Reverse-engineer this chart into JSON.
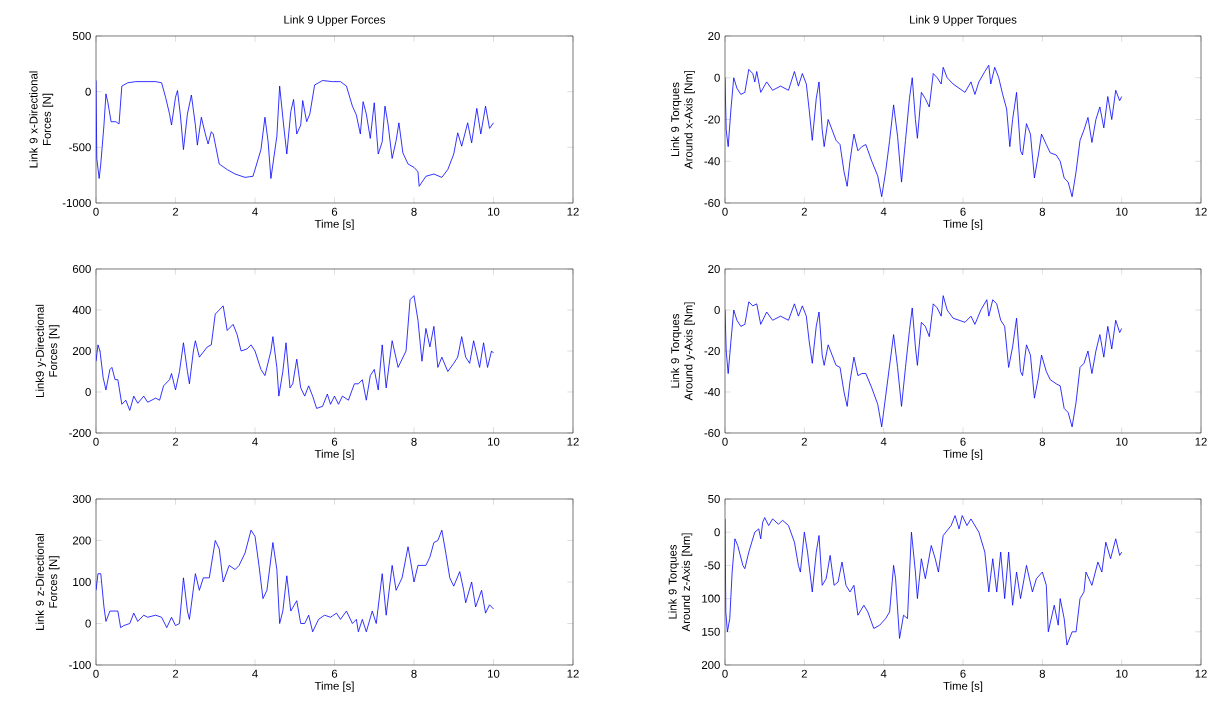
{
  "chart_data": [
    {
      "type": "line",
      "title": "Link 9 Upper Forces",
      "xlabel": "Time [s]",
      "ylabel": "Link 9 x-Directional Forces [N]",
      "color": "#0000ff",
      "xlim": [
        0,
        12
      ],
      "xticks": [
        0,
        2,
        4,
        6,
        8,
        10,
        12
      ],
      "ylim": [
        -1000,
        500
      ],
      "yticks": [
        -1000,
        -500,
        0,
        500
      ],
      "x": [
        0,
        0.02,
        0.08,
        0.12,
        0.2,
        0.25,
        0.3,
        0.38,
        0.5,
        0.58,
        0.65,
        0.8,
        1.0,
        1.5,
        1.65,
        1.75,
        1.85,
        1.9,
        2.0,
        2.05,
        2.12,
        2.2,
        2.3,
        2.4,
        2.5,
        2.55,
        2.65,
        2.75,
        2.82,
        2.9,
        2.95,
        3.1,
        3.3,
        3.5,
        3.75,
        3.95,
        4.05,
        4.15,
        4.25,
        4.33,
        4.4,
        4.55,
        4.62,
        4.72,
        4.8,
        4.9,
        4.97,
        5.05,
        5.15,
        5.2,
        5.3,
        5.38,
        5.5,
        5.7,
        5.95,
        6.15,
        6.3,
        6.45,
        6.55,
        6.65,
        6.72,
        6.8,
        6.9,
        7.0,
        7.1,
        7.2,
        7.27,
        7.35,
        7.45,
        7.55,
        7.62,
        7.72,
        7.85,
        8.0,
        8.1,
        8.13,
        8.3,
        8.5,
        8.7,
        8.85,
        9.0,
        9.1,
        9.2,
        9.35,
        9.45,
        9.58,
        9.68,
        9.8,
        9.9,
        10.0
      ],
      "values": [
        100,
        -600,
        -780,
        -650,
        -300,
        -20,
        -100,
        -270,
        -270,
        -290,
        50,
        80,
        90,
        90,
        80,
        -50,
        -200,
        -300,
        -50,
        10,
        -200,
        -520,
        -200,
        -30,
        -300,
        -480,
        -230,
        -380,
        -470,
        -360,
        -380,
        -650,
        -700,
        -740,
        -770,
        -760,
        -640,
        -520,
        -230,
        -450,
        -780,
        -400,
        50,
        -300,
        -560,
        -180,
        -70,
        -380,
        -300,
        -80,
        -270,
        -200,
        60,
        100,
        90,
        90,
        50,
        -130,
        -210,
        -380,
        -90,
        -200,
        -420,
        -100,
        -560,
        -450,
        -130,
        -300,
        -600,
        -440,
        -280,
        -550,
        -650,
        -680,
        -720,
        -850,
        -760,
        -740,
        -770,
        -700,
        -560,
        -370,
        -490,
        -280,
        -460,
        -150,
        -380,
        -130,
        -330,
        -280
      ]
    },
    {
      "type": "line",
      "title": "Link 9 Upper Torques",
      "xlabel": "Time [s]",
      "ylabel": "Link 9 Torques Around x-Axis [Nm]",
      "color": "#0000ff",
      "xlim": [
        0,
        12
      ],
      "xticks": [
        0,
        2,
        4,
        6,
        8,
        10,
        12
      ],
      "ylim": [
        -60,
        20
      ],
      "yticks": [
        -60,
        -40,
        -20,
        0,
        20
      ],
      "x": [
        0,
        0.03,
        0.08,
        0.15,
        0.22,
        0.3,
        0.4,
        0.5,
        0.6,
        0.7,
        0.75,
        0.8,
        0.9,
        1.05,
        1.2,
        1.4,
        1.6,
        1.75,
        1.85,
        1.95,
        2.05,
        2.12,
        2.2,
        2.3,
        2.37,
        2.45,
        2.5,
        2.6,
        2.7,
        2.8,
        2.9,
        3.0,
        3.08,
        3.15,
        3.25,
        3.35,
        3.45,
        3.55,
        3.7,
        3.85,
        3.95,
        4.05,
        4.15,
        4.25,
        4.35,
        4.45,
        4.55,
        4.65,
        4.72,
        4.8,
        4.85,
        4.95,
        5.05,
        5.15,
        5.25,
        5.35,
        5.45,
        5.5,
        5.6,
        5.75,
        5.9,
        6.05,
        6.2,
        6.3,
        6.4,
        6.55,
        6.65,
        6.7,
        6.8,
        6.9,
        7.0,
        7.1,
        7.18,
        7.25,
        7.35,
        7.45,
        7.5,
        7.6,
        7.7,
        7.8,
        7.9,
        7.98,
        8.1,
        8.2,
        8.35,
        8.45,
        8.55,
        8.65,
        8.75,
        8.85,
        8.95,
        9.05,
        9.15,
        9.25,
        9.35,
        9.45,
        9.55,
        9.65,
        9.75,
        9.85,
        9.95,
        10.0
      ],
      "values": [
        0,
        -25,
        -33,
        -15,
        0,
        -5,
        -8,
        -7,
        4,
        2,
        -2,
        3,
        -7,
        -2,
        -6,
        -4,
        -6,
        3,
        -4,
        2,
        -3,
        -15,
        -30,
        -10,
        -2,
        -25,
        -33,
        -20,
        -25,
        -30,
        -32,
        -45,
        -52,
        -40,
        -27,
        -35,
        -33,
        -32,
        -40,
        -47,
        -57,
        -45,
        -30,
        -13,
        -28,
        -50,
        -30,
        -10,
        0,
        -20,
        -29,
        -7,
        -10,
        -14,
        2,
        0,
        -3,
        5,
        0,
        -3,
        -5,
        -7,
        -2,
        -8,
        -2,
        3,
        6,
        -3,
        5,
        0,
        -8,
        -15,
        -33,
        -20,
        -7,
        -35,
        -37,
        -22,
        -27,
        -48,
        -37,
        -27,
        -32,
        -36,
        -37,
        -40,
        -48,
        -50,
        -57,
        -45,
        -30,
        -25,
        -19,
        -31,
        -20,
        -14,
        -24,
        -9,
        -20,
        -6,
        -11,
        -9
      ]
    },
    {
      "type": "line",
      "xlabel": "Time [s]",
      "ylabel": "Link9 y-Directional Forces [N]",
      "color": "#0000ff",
      "xlim": [
        0,
        12
      ],
      "xticks": [
        0,
        2,
        4,
        6,
        8,
        10,
        12
      ],
      "ylim": [
        -200,
        600
      ],
      "yticks": [
        -200,
        0,
        200,
        400,
        600
      ],
      "x": [
        0,
        0.05,
        0.1,
        0.18,
        0.25,
        0.35,
        0.4,
        0.48,
        0.55,
        0.65,
        0.75,
        0.85,
        0.95,
        1.05,
        1.2,
        1.3,
        1.5,
        1.6,
        1.7,
        1.85,
        1.9,
        2.0,
        2.1,
        2.2,
        2.3,
        2.35,
        2.45,
        2.5,
        2.6,
        2.8,
        2.9,
        3.0,
        3.1,
        3.2,
        3.3,
        3.45,
        3.55,
        3.65,
        3.8,
        3.9,
        4.0,
        4.15,
        4.25,
        4.4,
        4.45,
        4.55,
        4.6,
        4.7,
        4.78,
        4.88,
        4.95,
        5.05,
        5.15,
        5.25,
        5.35,
        5.45,
        5.55,
        5.7,
        5.82,
        5.9,
        6.0,
        6.1,
        6.2,
        6.35,
        6.5,
        6.6,
        6.7,
        6.8,
        6.9,
        7.0,
        7.1,
        7.2,
        7.3,
        7.45,
        7.6,
        7.8,
        7.9,
        8.0,
        8.1,
        8.2,
        8.3,
        8.4,
        8.5,
        8.6,
        8.7,
        8.85,
        9.0,
        9.1,
        9.2,
        9.3,
        9.4,
        9.5,
        9.65,
        9.75,
        9.85,
        9.95,
        10.0
      ],
      "values": [
        150,
        230,
        200,
        70,
        10,
        110,
        120,
        60,
        60,
        -60,
        -40,
        -90,
        -20,
        -55,
        -20,
        -50,
        -30,
        -40,
        30,
        60,
        90,
        10,
        100,
        240,
        100,
        40,
        200,
        250,
        170,
        220,
        230,
        380,
        400,
        420,
        300,
        330,
        280,
        200,
        210,
        230,
        200,
        110,
        80,
        200,
        270,
        120,
        -20,
        100,
        240,
        20,
        40,
        160,
        20,
        -20,
        30,
        -20,
        -80,
        -70,
        -10,
        -60,
        -20,
        -60,
        -20,
        -40,
        40,
        40,
        60,
        -40,
        80,
        110,
        10,
        230,
        20,
        250,
        120,
        200,
        450,
        470,
        350,
        150,
        310,
        220,
        320,
        120,
        170,
        100,
        140,
        170,
        270,
        170,
        140,
        250,
        120,
        240,
        120,
        200,
        190
      ]
    },
    {
      "type": "line",
      "xlabel": "Time [s]",
      "ylabel": "Link 9 Torques Around y-Axis [Nm]",
      "color": "#0000ff",
      "xlim": [
        0,
        12
      ],
      "xticks": [
        0,
        2,
        4,
        6,
        8,
        10,
        12
      ],
      "ylim": [
        -60,
        20
      ],
      "yticks": [
        -60,
        -40,
        -20,
        0,
        20
      ],
      "x": [
        0,
        0.03,
        0.08,
        0.15,
        0.22,
        0.3,
        0.4,
        0.5,
        0.6,
        0.7,
        0.8,
        0.9,
        1.05,
        1.2,
        1.4,
        1.6,
        1.75,
        1.85,
        1.95,
        2.05,
        2.12,
        2.2,
        2.3,
        2.37,
        2.45,
        2.5,
        2.6,
        2.7,
        2.8,
        2.9,
        3.0,
        3.08,
        3.15,
        3.25,
        3.35,
        3.45,
        3.55,
        3.7,
        3.85,
        3.95,
        4.05,
        4.15,
        4.25,
        4.35,
        4.45,
        4.55,
        4.65,
        4.72,
        4.8,
        4.85,
        4.95,
        5.05,
        5.15,
        5.25,
        5.35,
        5.45,
        5.5,
        5.6,
        5.75,
        5.9,
        6.05,
        6.2,
        6.3,
        6.45,
        6.6,
        6.65,
        6.75,
        6.85,
        6.95,
        7.05,
        7.15,
        7.25,
        7.35,
        7.45,
        7.5,
        7.6,
        7.7,
        7.8,
        7.9,
        7.98,
        8.1,
        8.2,
        8.35,
        8.45,
        8.55,
        8.65,
        8.75,
        8.85,
        8.95,
        9.05,
        9.15,
        9.25,
        9.35,
        9.45,
        9.55,
        9.65,
        9.75,
        9.85,
        9.95,
        10.0
      ],
      "values": [
        0,
        -20,
        -31,
        -15,
        0,
        -5,
        -8,
        -7,
        4,
        2,
        3,
        -7,
        -1,
        -5,
        -3,
        -5,
        3,
        -3,
        2,
        -3,
        -15,
        -26,
        -8,
        -1,
        -22,
        -27,
        -17,
        -22,
        -27,
        -28,
        -40,
        -47,
        -35,
        -23,
        -32,
        -31,
        -31,
        -38,
        -46,
        -57,
        -42,
        -27,
        -12,
        -28,
        -47,
        -28,
        -10,
        1,
        -18,
        -27,
        -6,
        -8,
        -13,
        3,
        1,
        -3,
        7,
        0,
        -4,
        -5,
        -6,
        -3,
        -7,
        0,
        5,
        -3,
        5,
        3,
        -5,
        -8,
        -28,
        -18,
        -4,
        -30,
        -32,
        -17,
        -22,
        -43,
        -33,
        -22,
        -30,
        -34,
        -36,
        -37,
        -48,
        -50,
        -57,
        -45,
        -28,
        -26,
        -20,
        -31,
        -20,
        -12,
        -23,
        -8,
        -19,
        -5,
        -11,
        -9
      ]
    },
    {
      "type": "line",
      "xlabel": "Time [s]",
      "ylabel": "Link 9 z-Directional Forces [N]",
      "color": "#0000ff",
      "xlim": [
        0,
        12
      ],
      "xticks": [
        0,
        2,
        4,
        6,
        8,
        10,
        12
      ],
      "ylim": [
        -100,
        300
      ],
      "yticks": [
        -100,
        0,
        100,
        200,
        300
      ],
      "x": [
        0,
        0.05,
        0.12,
        0.2,
        0.25,
        0.35,
        0.5,
        0.55,
        0.62,
        0.7,
        0.85,
        0.95,
        1.05,
        1.2,
        1.3,
        1.5,
        1.65,
        1.78,
        1.9,
        2.0,
        2.1,
        2.2,
        2.3,
        2.35,
        2.5,
        2.6,
        2.7,
        2.85,
        3.0,
        3.1,
        3.2,
        3.35,
        3.5,
        3.6,
        3.75,
        3.9,
        4.0,
        4.1,
        4.2,
        4.3,
        4.45,
        4.55,
        4.62,
        4.7,
        4.8,
        4.9,
        5.05,
        5.15,
        5.25,
        5.35,
        5.45,
        5.6,
        5.75,
        5.9,
        6.05,
        6.15,
        6.3,
        6.45,
        6.55,
        6.6,
        6.7,
        6.8,
        6.95,
        7.05,
        7.2,
        7.3,
        7.45,
        7.55,
        7.7,
        7.85,
        7.95,
        8.0,
        8.1,
        8.3,
        8.4,
        8.5,
        8.6,
        8.7,
        8.8,
        8.9,
        9.0,
        9.15,
        9.25,
        9.3,
        9.45,
        9.55,
        9.7,
        9.8,
        9.9,
        10.0
      ],
      "values": [
        80,
        120,
        120,
        40,
        5,
        30,
        30,
        30,
        -10,
        -5,
        0,
        25,
        5,
        20,
        15,
        20,
        15,
        -10,
        15,
        -5,
        0,
        110,
        30,
        10,
        120,
        80,
        110,
        110,
        200,
        180,
        100,
        140,
        130,
        140,
        170,
        225,
        210,
        140,
        60,
        80,
        195,
        130,
        0,
        30,
        115,
        30,
        55,
        0,
        0,
        20,
        -20,
        10,
        20,
        15,
        25,
        10,
        30,
        0,
        10,
        -20,
        10,
        -20,
        30,
        0,
        120,
        20,
        140,
        80,
        110,
        185,
        130,
        100,
        140,
        140,
        160,
        195,
        200,
        225,
        170,
        110,
        90,
        125,
        80,
        50,
        100,
        40,
        80,
        25,
        45,
        35
      ]
    },
    {
      "type": "line",
      "xlabel": "Time [s]",
      "ylabel": "Link 9 Torques Around z-Axis [Nm]",
      "color": "#0000ff",
      "xlim": [
        0,
        12
      ],
      "xticks": [
        0,
        2,
        4,
        6,
        8,
        10,
        12
      ],
      "ylim": [
        -200,
        50
      ],
      "yticks": [
        {
          "value": -200,
          "label": "200"
        },
        {
          "value": -150,
          "label": "150"
        },
        {
          "value": -100,
          "label": "100"
        },
        -50,
        0,
        50
      ],
      "x": [
        0,
        0.02,
        0.06,
        0.12,
        0.18,
        0.25,
        0.32,
        0.45,
        0.5,
        0.6,
        0.75,
        0.85,
        0.9,
        0.95,
        1.0,
        1.1,
        1.2,
        1.35,
        1.45,
        1.6,
        1.75,
        1.85,
        1.9,
        2.0,
        2.08,
        2.2,
        2.3,
        2.37,
        2.45,
        2.55,
        2.65,
        2.75,
        2.85,
        2.95,
        3.05,
        3.15,
        3.25,
        3.35,
        3.5,
        3.6,
        3.75,
        3.9,
        4.05,
        4.15,
        4.25,
        4.3,
        4.4,
        4.5,
        4.6,
        4.7,
        4.8,
        4.85,
        4.95,
        5.05,
        5.2,
        5.3,
        5.38,
        5.5,
        5.7,
        5.8,
        5.9,
        5.98,
        6.1,
        6.2,
        6.4,
        6.55,
        6.65,
        6.75,
        6.85,
        6.95,
        7.05,
        7.15,
        7.25,
        7.35,
        7.45,
        7.6,
        7.75,
        7.85,
        8.0,
        8.1,
        8.15,
        8.3,
        8.4,
        8.45,
        8.55,
        8.62,
        8.75,
        8.85,
        8.95,
        9.05,
        9.1,
        9.25,
        9.4,
        9.5,
        9.6,
        9.72,
        9.85,
        9.95,
        10.0
      ],
      "values": [
        20,
        -120,
        -150,
        -130,
        -60,
        -10,
        -20,
        -50,
        -55,
        -30,
        0,
        5,
        -10,
        15,
        22,
        10,
        20,
        12,
        18,
        10,
        -15,
        -50,
        -60,
        0,
        -30,
        -90,
        -30,
        -5,
        -80,
        -70,
        -35,
        -80,
        -75,
        -45,
        -80,
        -90,
        -80,
        -125,
        -110,
        -120,
        -145,
        -140,
        -130,
        -120,
        -50,
        -70,
        -160,
        -125,
        -130,
        0,
        -60,
        -100,
        -40,
        -70,
        -20,
        -40,
        -60,
        -5,
        10,
        25,
        5,
        25,
        10,
        20,
        0,
        -30,
        -90,
        -40,
        -90,
        -30,
        -100,
        -30,
        -110,
        -60,
        -100,
        -50,
        -90,
        -70,
        -60,
        -80,
        -150,
        -110,
        -140,
        -100,
        -130,
        -170,
        -150,
        -150,
        -100,
        -90,
        -60,
        -80,
        -45,
        -60,
        -15,
        -40,
        -10,
        -35,
        -30
      ]
    }
  ]
}
